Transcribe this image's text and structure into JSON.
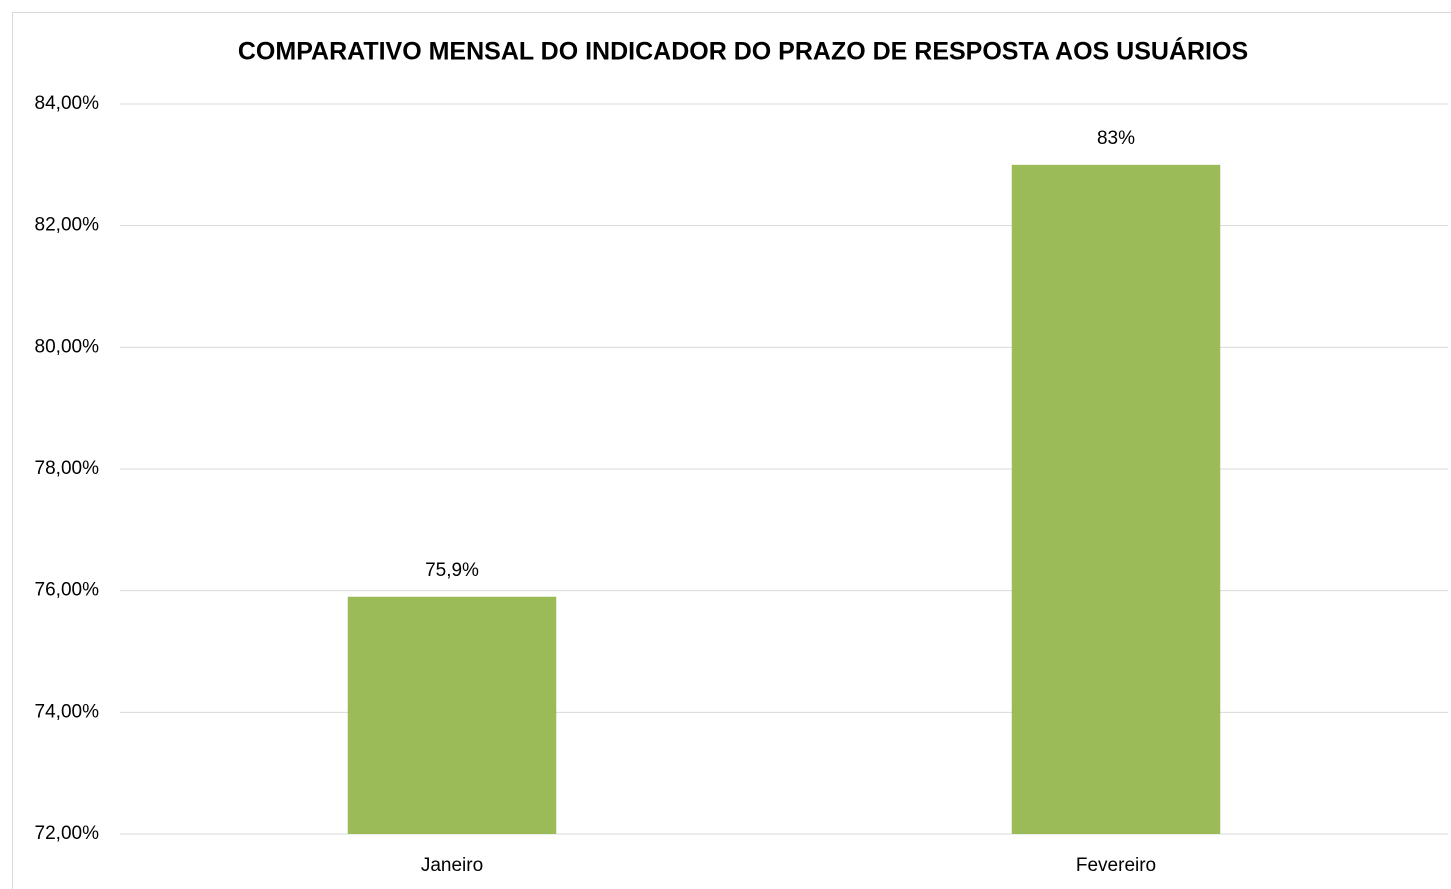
{
  "chart_data": {
    "type": "bar",
    "title": "COMPARATIVO MENSAL DO INDICADOR DO PRAZO DE RESPOSTA AOS USUÁRIOS",
    "categories": [
      "Janeiro",
      "Fevereiro"
    ],
    "values": [
      75.9,
      83
    ],
    "value_labels": [
      "75,9%",
      "83%"
    ],
    "color": "#9bbb59",
    "ylim": [
      72,
      84
    ],
    "yticks": [
      {
        "value": 72,
        "label": "72,00%"
      },
      {
        "value": 74,
        "label": "74,00%"
      },
      {
        "value": 76,
        "label": "76,00%"
      },
      {
        "value": 78,
        "label": "78,00%"
      },
      {
        "value": 80,
        "label": "80,00%"
      },
      {
        "value": 82,
        "label": "82,00%"
      },
      {
        "value": 84,
        "label": "84,00%"
      }
    ],
    "grid": true
  }
}
